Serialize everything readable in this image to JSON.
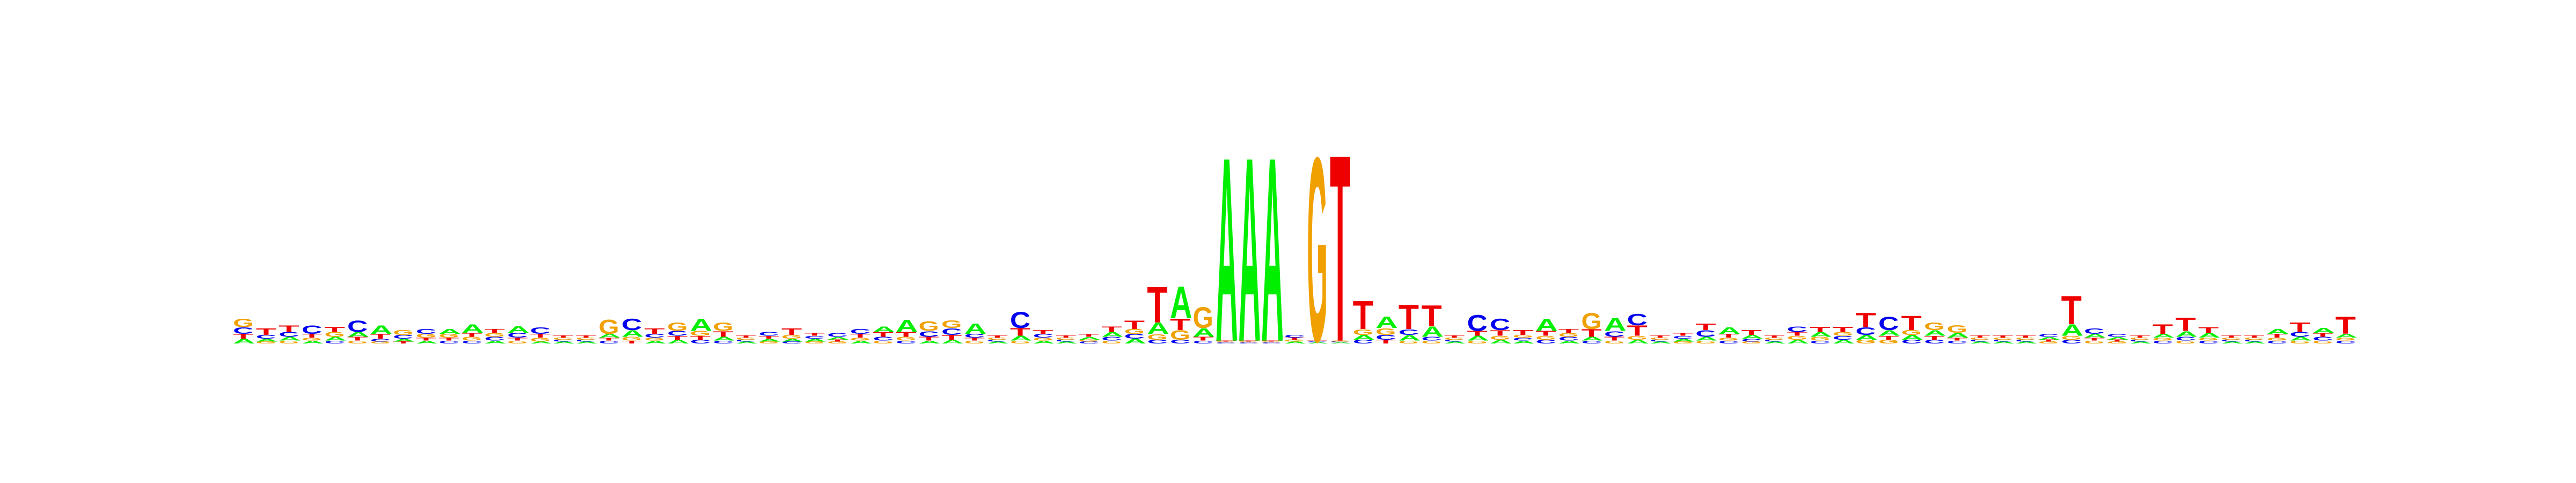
{
  "chart_data": {
    "type": "sequence-logo",
    "alphabet": [
      "A",
      "C",
      "G",
      "T"
    ],
    "colors": {
      "A": "#00ee00",
      "C": "#0000ee",
      "G": "#f0a000",
      "T": "#ee0000"
    },
    "ylim": [
      0,
      2
    ],
    "grid": false,
    "legend": "none",
    "positions": [
      {
        "A": 0.05,
        "C": 0.07,
        "G": 0.09,
        "T": 0.05
      },
      {
        "A": 0.03,
        "C": 0.04,
        "G": 0.02,
        "T": 0.07
      },
      {
        "A": 0.04,
        "C": 0.05,
        "G": 0.03,
        "T": 0.07
      },
      {
        "A": 0.03,
        "C": 0.09,
        "G": 0.03,
        "T": 0.04
      },
      {
        "A": 0.04,
        "C": 0.03,
        "G": 0.05,
        "T": 0.05
      },
      {
        "A": 0.05,
        "C": 0.12,
        "G": 0.03,
        "T": 0.04
      },
      {
        "A": 0.09,
        "C": 0.03,
        "G": 0.02,
        "T": 0.05
      },
      {
        "A": 0.03,
        "C": 0.04,
        "G": 0.05,
        "T": 0.02
      },
      {
        "A": 0.03,
        "C": 0.05,
        "G": 0.04,
        "T": 0.03
      },
      {
        "A": 0.05,
        "C": 0.03,
        "G": 0.04,
        "T": 0.03
      },
      {
        "A": 0.09,
        "C": 0.03,
        "G": 0.04,
        "T": 0.04
      },
      {
        "A": 0.03,
        "C": 0.04,
        "G": 0.04,
        "T": 0.04
      },
      {
        "A": 0.07,
        "C": 0.05,
        "G": 0.03,
        "T": 0.03
      },
      {
        "A": 0.02,
        "C": 0.07,
        "G": 0.04,
        "T": 0.04
      },
      {
        "A": 0.02,
        "C": 0.02,
        "G": 0.02,
        "T": 0.02
      },
      {
        "A": 0.02,
        "C": 0.02,
        "G": 0.02,
        "T": 0.02
      },
      {
        "A": 0.04,
        "C": 0.03,
        "G": 0.15,
        "T": 0.03
      },
      {
        "A": 0.07,
        "C": 0.12,
        "G": 0.04,
        "T": 0.03
      },
      {
        "A": 0.03,
        "C": 0.04,
        "G": 0.03,
        "T": 0.06
      },
      {
        "A": 0.04,
        "C": 0.05,
        "G": 0.09,
        "T": 0.04
      },
      {
        "A": 0.13,
        "C": 0.04,
        "G": 0.05,
        "T": 0.04
      },
      {
        "A": 0.04,
        "C": 0.03,
        "G": 0.09,
        "T": 0.06
      },
      {
        "A": 0.02,
        "C": 0.02,
        "G": 0.02,
        "T": 0.02
      },
      {
        "A": 0.03,
        "C": 0.04,
        "G": 0.02,
        "T": 0.03
      },
      {
        "A": 0.03,
        "C": 0.02,
        "G": 0.04,
        "T": 0.07
      },
      {
        "A": 0.03,
        "C": 0.03,
        "G": 0.02,
        "T": 0.03
      },
      {
        "A": 0.03,
        "C": 0.04,
        "G": 0.02,
        "T": 0.02
      },
      {
        "A": 0.03,
        "C": 0.05,
        "G": 0.03,
        "T": 0.04
      },
      {
        "A": 0.06,
        "C": 0.04,
        "G": 0.03,
        "T": 0.05
      },
      {
        "A": 0.13,
        "C": 0.03,
        "G": 0.04,
        "T": 0.05
      },
      {
        "A": 0.03,
        "C": 0.06,
        "G": 0.1,
        "T": 0.04
      },
      {
        "A": 0.04,
        "C": 0.07,
        "G": 0.08,
        "T": 0.05
      },
      {
        "A": 0.11,
        "C": 0.04,
        "G": 0.03,
        "T": 0.03
      },
      {
        "A": 0.02,
        "C": 0.02,
        "G": 0.02,
        "T": 0.02
      },
      {
        "A": 0.05,
        "C": 0.17,
        "G": 0.03,
        "T": 0.08
      },
      {
        "A": 0.03,
        "C": 0.04,
        "G": 0.03,
        "T": 0.04
      },
      {
        "A": 0.02,
        "C": 0.02,
        "G": 0.02,
        "T": 0.02
      },
      {
        "A": 0.03,
        "C": 0.02,
        "G": 0.02,
        "T": 0.03
      },
      {
        "A": 0.05,
        "C": 0.04,
        "G": 0.03,
        "T": 0.06
      },
      {
        "A": 0.05,
        "C": 0.05,
        "G": 0.05,
        "T": 0.09
      },
      {
        "A": 0.12,
        "C": 0.04,
        "G": 0.06,
        "T": 0.38
      },
      {
        "A": 0.34,
        "C": 0.04,
        "G": 0.1,
        "T": 0.12
      },
      {
        "A": 0.09,
        "C": 0.03,
        "G": 0.22,
        "T": 0.04
      },
      {
        "A": 1.95,
        "C": 0.01,
        "G": 0.01,
        "T": 0.01
      },
      {
        "A": 1.95,
        "C": 0.01,
        "G": 0.01,
        "T": 0.01
      },
      {
        "A": 1.95,
        "C": 0.01,
        "G": 0.01,
        "T": 0.01
      },
      {
        "A": 0.02,
        "C": 0.03,
        "G": 0.02,
        "T": 0.02
      },
      {
        "A": 0.01,
        "C": 0.01,
        "G": 1.95,
        "T": 0.01
      },
      {
        "A": 0.01,
        "C": 0.01,
        "G": 0.01,
        "T": 1.98
      },
      {
        "A": 0.05,
        "C": 0.04,
        "G": 0.06,
        "T": 0.3
      },
      {
        "A": 0.12,
        "C": 0.05,
        "G": 0.07,
        "T": 0.04
      },
      {
        "A": 0.06,
        "C": 0.06,
        "G": 0.03,
        "T": 0.26
      },
      {
        "A": 0.11,
        "C": 0.04,
        "G": 0.03,
        "T": 0.22
      },
      {
        "A": 0.02,
        "C": 0.02,
        "G": 0.02,
        "T": 0.02
      },
      {
        "A": 0.05,
        "C": 0.17,
        "G": 0.03,
        "T": 0.05
      },
      {
        "A": 0.04,
        "C": 0.12,
        "G": 0.04,
        "T": 0.06
      },
      {
        "A": 0.03,
        "C": 0.03,
        "G": 0.03,
        "T": 0.05
      },
      {
        "A": 0.13,
        "C": 0.04,
        "G": 0.04,
        "T": 0.05
      },
      {
        "A": 0.03,
        "C": 0.04,
        "G": 0.04,
        "T": 0.04
      },
      {
        "A": 0.04,
        "C": 0.03,
        "G": 0.17,
        "T": 0.08
      },
      {
        "A": 0.14,
        "C": 0.06,
        "G": 0.03,
        "T": 0.04
      },
      {
        "A": 0.04,
        "C": 0.12,
        "G": 0.04,
        "T": 0.11
      },
      {
        "A": 0.02,
        "C": 0.02,
        "G": 0.02,
        "T": 0.02
      },
      {
        "A": 0.03,
        "C": 0.03,
        "G": 0.02,
        "T": 0.03
      },
      {
        "A": 0.04,
        "C": 0.07,
        "G": 0.03,
        "T": 0.07
      },
      {
        "A": 0.07,
        "C": 0.03,
        "G": 0.03,
        "T": 0.04
      },
      {
        "A": 0.04,
        "C": 0.03,
        "G": 0.02,
        "T": 0.05
      },
      {
        "A": 0.02,
        "C": 0.02,
        "G": 0.02,
        "T": 0.02
      },
      {
        "A": 0.04,
        "C": 0.06,
        "G": 0.04,
        "T": 0.04
      },
      {
        "A": 0.05,
        "C": 0.03,
        "G": 0.04,
        "T": 0.05
      },
      {
        "A": 0.04,
        "C": 0.04,
        "G": 0.04,
        "T": 0.05
      },
      {
        "A": 0.05,
        "C": 0.08,
        "G": 0.04,
        "T": 0.15
      },
      {
        "A": 0.06,
        "C": 0.14,
        "G": 0.04,
        "T": 0.04
      },
      {
        "A": 0.05,
        "C": 0.04,
        "G": 0.05,
        "T": 0.15
      },
      {
        "A": 0.06,
        "C": 0.04,
        "G": 0.08,
        "T": 0.04
      },
      {
        "A": 0.05,
        "C": 0.03,
        "G": 0.08,
        "T": 0.03
      },
      {
        "A": 0.02,
        "C": 0.02,
        "G": 0.02,
        "T": 0.02
      },
      {
        "A": 0.02,
        "C": 0.02,
        "G": 0.02,
        "T": 0.02
      },
      {
        "A": 0.02,
        "C": 0.02,
        "G": 0.02,
        "T": 0.02
      },
      {
        "A": 0.03,
        "C": 0.03,
        "G": 0.02,
        "T": 0.02
      },
      {
        "A": 0.12,
        "C": 0.04,
        "G": 0.04,
        "T": 0.3
      },
      {
        "A": 0.04,
        "C": 0.06,
        "G": 0.03,
        "T": 0.03
      },
      {
        "A": 0.03,
        "C": 0.03,
        "G": 0.02,
        "T": 0.02
      },
      {
        "A": 0.02,
        "C": 0.02,
        "G": 0.02,
        "T": 0.02
      },
      {
        "A": 0.04,
        "C": 0.03,
        "G": 0.03,
        "T": 0.1
      },
      {
        "A": 0.06,
        "C": 0.04,
        "G": 0.03,
        "T": 0.14
      },
      {
        "A": 0.05,
        "C": 0.03,
        "G": 0.03,
        "T": 0.06
      },
      {
        "A": 0.02,
        "C": 0.02,
        "G": 0.02,
        "T": 0.02
      },
      {
        "A": 0.02,
        "C": 0.02,
        "G": 0.02,
        "T": 0.02
      },
      {
        "A": 0.05,
        "C": 0.03,
        "G": 0.03,
        "T": 0.04
      },
      {
        "A": 0.04,
        "C": 0.05,
        "G": 0.03,
        "T": 0.1
      },
      {
        "A": 0.05,
        "C": 0.04,
        "G": 0.03,
        "T": 0.04
      },
      {
        "A": 0.04,
        "C": 0.03,
        "G": 0.03,
        "T": 0.18
      }
    ]
  }
}
